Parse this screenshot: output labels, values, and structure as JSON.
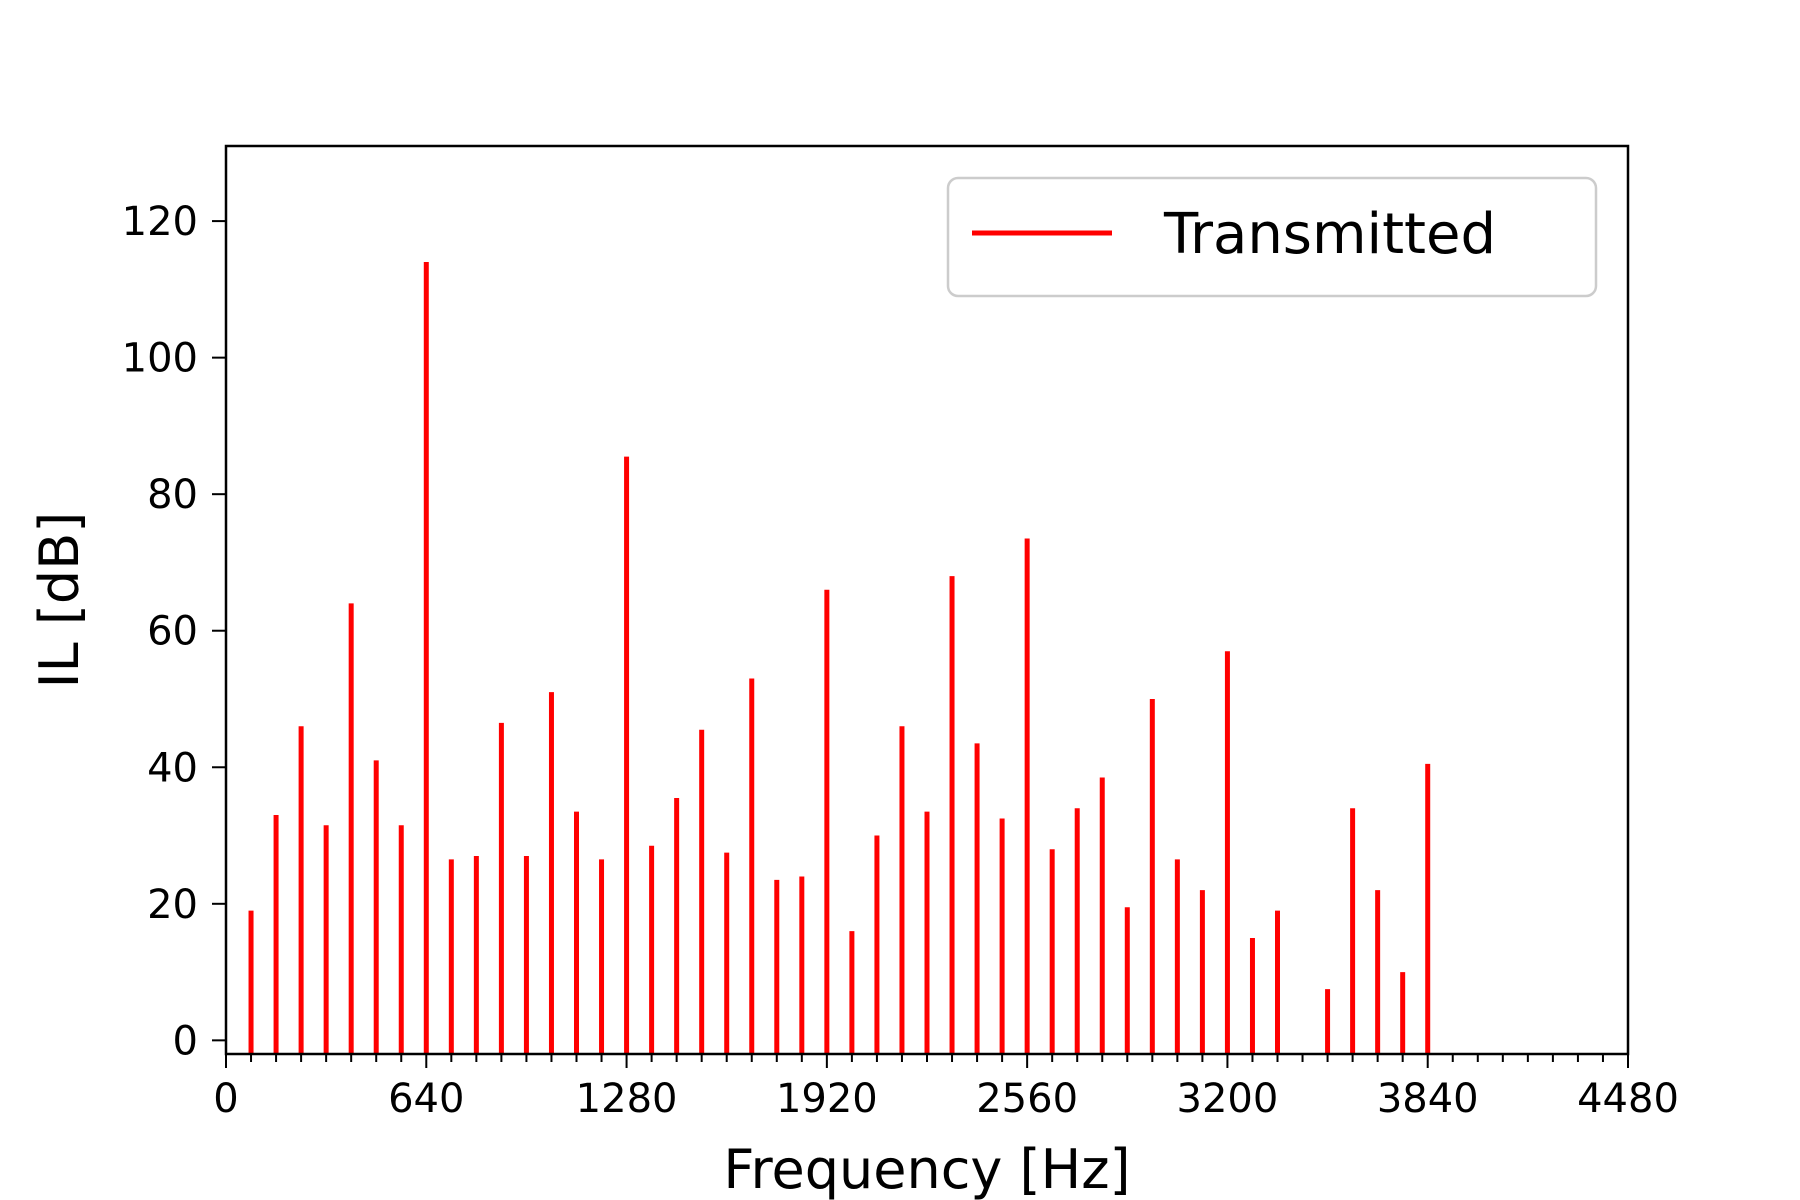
{
  "chart_data": {
    "type": "bar",
    "xlabel": "Frequency [Hz]",
    "ylabel": "IL [dB]",
    "xlim": [
      0,
      4480
    ],
    "ylim": [
      -2,
      131
    ],
    "xticks": [
      0,
      640,
      1280,
      1920,
      2560,
      3200,
      3840,
      4480
    ],
    "xtick_labels": [
      "0",
      "640",
      "1280",
      "1920",
      "2560",
      "3200",
      "3840",
      "4480"
    ],
    "minor_xtick_step": 80,
    "yticks": [
      0,
      20,
      40,
      60,
      80,
      100,
      120
    ],
    "ytick_labels": [
      "0",
      "20",
      "40",
      "60",
      "80",
      "100",
      "120"
    ],
    "grid": false,
    "legend_position": "top-right",
    "series": [
      {
        "name": "Transmitted",
        "color": "#ff0000",
        "x": [
          80,
          160,
          240,
          320,
          400,
          480,
          560,
          640,
          720,
          800,
          880,
          960,
          1040,
          1120,
          1200,
          1280,
          1360,
          1440,
          1520,
          1600,
          1680,
          1760,
          1840,
          1920,
          2000,
          2080,
          2160,
          2240,
          2320,
          2400,
          2480,
          2560,
          2640,
          2720,
          2800,
          2880,
          2960,
          3040,
          3120,
          3200,
          3280,
          3360,
          3520,
          3600,
          3680,
          3760,
          3840
        ],
        "values": [
          19,
          33,
          46,
          31.5,
          64,
          41,
          31.5,
          114,
          26.5,
          27,
          46.5,
          27,
          51,
          33.5,
          26.5,
          85.5,
          28.5,
          35.5,
          45.5,
          27.5,
          53,
          23.5,
          24,
          66,
          16,
          30,
          46,
          33.5,
          68,
          43.5,
          32.5,
          73.5,
          28,
          34,
          38.5,
          19.5,
          50,
          26.5,
          22,
          57,
          15,
          19,
          7.5,
          34,
          22,
          10,
          40.5
        ]
      }
    ]
  }
}
